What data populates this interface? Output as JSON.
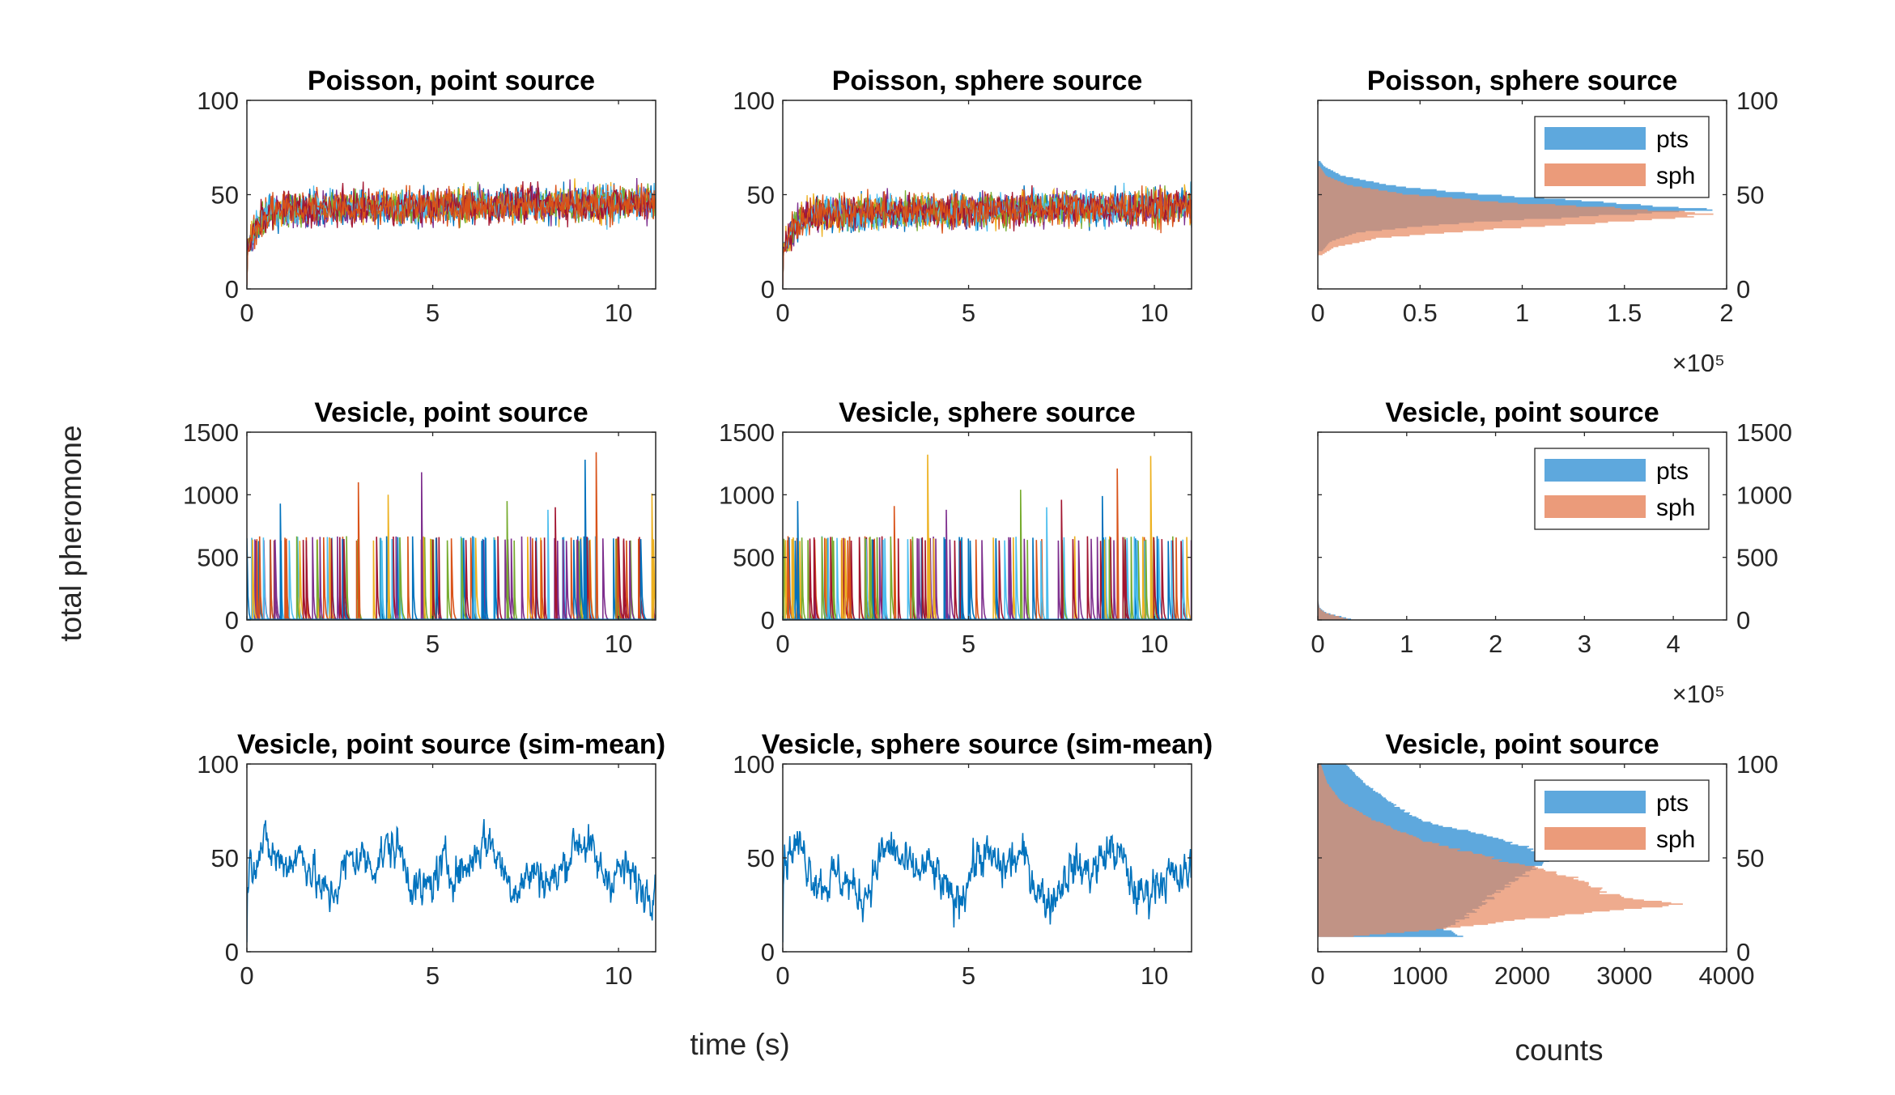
{
  "figure": {
    "ylabel": "total pheromone",
    "xlabel_time": "time (s)",
    "xlabel_counts": "counts"
  },
  "colors": {
    "pts": "#4d9fd9",
    "sph": "#e88a63",
    "overlap": "#9a6a5a",
    "mean_line": "#0072bd",
    "trace_palette": [
      "#0072bd",
      "#d95319",
      "#edb120",
      "#7e2f8e",
      "#77ac30",
      "#4dbeee",
      "#a2142f"
    ]
  },
  "chart_data": [
    {
      "id": "p1",
      "type": "line",
      "title": "Poisson, point source",
      "x_ticks": [
        "0",
        "5",
        "10"
      ],
      "xlim": [
        0,
        11
      ],
      "y_ticks": [
        "0",
        "50",
        "100"
      ],
      "ylim": [
        0,
        100
      ],
      "style": "multi_trace",
      "trace_count": 7,
      "steady_level": 42,
      "noise_range": [
        20,
        70
      ]
    },
    {
      "id": "p2",
      "type": "line",
      "title": "Poisson, sphere source",
      "x_ticks": [
        "0",
        "5",
        "10"
      ],
      "xlim": [
        0,
        11
      ],
      "y_ticks": [
        "0",
        "50",
        "100"
      ],
      "ylim": [
        0,
        100
      ],
      "style": "multi_trace",
      "trace_count": 7,
      "steady_level": 40,
      "noise_range": [
        20,
        72
      ]
    },
    {
      "id": "p3",
      "type": "bar",
      "orientation": "horizontal",
      "title": "Poisson, sphere source",
      "x_ticks": [
        "0",
        "0.5",
        "1",
        "1.5",
        "2"
      ],
      "xlim": [
        0,
        2
      ],
      "x_scale": "×10⁵",
      "y_ticks": [
        "0",
        "50",
        "100"
      ],
      "ylim": [
        0,
        100
      ],
      "legend": [
        "pts",
        "sph"
      ],
      "legend_position": "top-right",
      "series": [
        {
          "name": "pts",
          "y": [
            20,
            25,
            30,
            35,
            40,
            42,
            45,
            48,
            50,
            55,
            60,
            65,
            68
          ],
          "values": [
            0.02,
            0.06,
            0.2,
            0.7,
            1.6,
            1.93,
            1.5,
            1.15,
            0.8,
            0.35,
            0.12,
            0.03,
            0.01
          ]
        },
        {
          "name": "sph",
          "y": [
            18,
            22,
            27,
            32,
            37,
            40,
            43,
            46,
            50,
            55,
            60,
            65
          ],
          "values": [
            0.02,
            0.08,
            0.3,
            0.9,
            1.7,
            1.93,
            1.45,
            0.9,
            0.45,
            0.15,
            0.04,
            0.01
          ]
        }
      ]
    },
    {
      "id": "p4",
      "type": "line",
      "title": "Vesicle, point source",
      "x_ticks": [
        "0",
        "5",
        "10"
      ],
      "xlim": [
        0,
        11
      ],
      "y_ticks": [
        "0",
        "500",
        "1000",
        "1500"
      ],
      "ylim": [
        0,
        1500
      ],
      "style": "spikes",
      "spike_base": 650,
      "spike_count": 150,
      "tall_spikes": [
        [
          0.9,
          930
        ],
        [
          3.0,
          1100
        ],
        [
          3.8,
          1000
        ],
        [
          4.7,
          1180
        ],
        [
          7.0,
          950
        ],
        [
          8.1,
          880
        ],
        [
          8.3,
          900
        ],
        [
          9.1,
          1280
        ],
        [
          9.4,
          1340
        ],
        [
          10.9,
          1010
        ]
      ]
    },
    {
      "id": "p5",
      "type": "line",
      "title": "Vesicle, sphere source",
      "x_ticks": [
        "0",
        "5",
        "10"
      ],
      "xlim": [
        0,
        11
      ],
      "y_ticks": [
        "0",
        "500",
        "1000",
        "1500"
      ],
      "ylim": [
        0,
        1500
      ],
      "style": "spikes",
      "spike_base": 650,
      "spike_count": 150,
      "tall_spikes": [
        [
          0.4,
          950
        ],
        [
          3.0,
          910
        ],
        [
          3.9,
          1320
        ],
        [
          4.4,
          880
        ],
        [
          6.4,
          1040
        ],
        [
          7.1,
          900
        ],
        [
          7.5,
          960
        ],
        [
          8.6,
          990
        ],
        [
          9.0,
          1210
        ],
        [
          9.9,
          1310
        ]
      ]
    },
    {
      "id": "p6",
      "type": "bar",
      "orientation": "horizontal",
      "title": "Vesicle, point source",
      "x_ticks": [
        "0",
        "1",
        "2",
        "3",
        "4"
      ],
      "xlim": [
        0,
        4.6
      ],
      "x_scale": "×10⁵",
      "y_ticks": [
        "0",
        "500",
        "1000",
        "1500"
      ],
      "ylim": [
        0,
        1500
      ],
      "legend": [
        "pts",
        "sph"
      ],
      "legend_position": "top-right",
      "series": [
        {
          "name": "pts",
          "y": [
            0,
            20,
            40,
            60,
            80,
            100,
            150
          ],
          "values": [
            0.4,
            0.3,
            0.18,
            0.09,
            0.05,
            0.02,
            0.005
          ]
        },
        {
          "name": "sph",
          "y": [
            0,
            20,
            40,
            60,
            80,
            100,
            150
          ],
          "values": [
            0.35,
            0.28,
            0.16,
            0.08,
            0.04,
            0.015,
            0.004
          ]
        }
      ]
    },
    {
      "id": "p7",
      "type": "line",
      "title": "Vesicle, point source (sim-mean)",
      "x_ticks": [
        "0",
        "5",
        "10"
      ],
      "xlim": [
        0,
        11
      ],
      "y_ticks": [
        "0",
        "50",
        "100"
      ],
      "ylim": [
        0,
        100
      ],
      "style": "single_noisy",
      "mean_level": 45,
      "noise_range": [
        8,
        100
      ]
    },
    {
      "id": "p8",
      "type": "line",
      "title": "Vesicle, sphere source (sim-mean)",
      "x_ticks": [
        "0",
        "5",
        "10"
      ],
      "xlim": [
        0,
        11
      ],
      "y_ticks": [
        "0",
        "50",
        "100"
      ],
      "ylim": [
        0,
        100
      ],
      "style": "single_noisy",
      "mean_level": 42,
      "noise_range": [
        10,
        100
      ]
    },
    {
      "id": "p9",
      "type": "bar",
      "orientation": "horizontal",
      "title": "Vesicle, point source",
      "x_ticks": [
        "0",
        "1000",
        "2000",
        "3000",
        "4000"
      ],
      "xlim": [
        0,
        4000
      ],
      "y_ticks": [
        "0",
        "50",
        "100"
      ],
      "ylim": [
        0,
        100
      ],
      "legend": [
        "pts",
        "sph"
      ],
      "legend_position": "top-right",
      "series": [
        {
          "name": "pts",
          "y": [
            8,
            12,
            20,
            30,
            40,
            50,
            60,
            70,
            80,
            90,
            100
          ],
          "values": [
            1400,
            1250,
            1500,
            1700,
            2000,
            2300,
            1800,
            1000,
            700,
            450,
            280
          ]
        },
        {
          "name": "sph",
          "y": [
            8,
            12,
            20,
            25,
            30,
            40,
            50,
            60,
            70,
            80,
            90,
            100
          ],
          "values": [
            300,
            1200,
            2500,
            3600,
            2900,
            2500,
            1700,
            1000,
            550,
            230,
            90,
            30
          ]
        }
      ]
    }
  ]
}
